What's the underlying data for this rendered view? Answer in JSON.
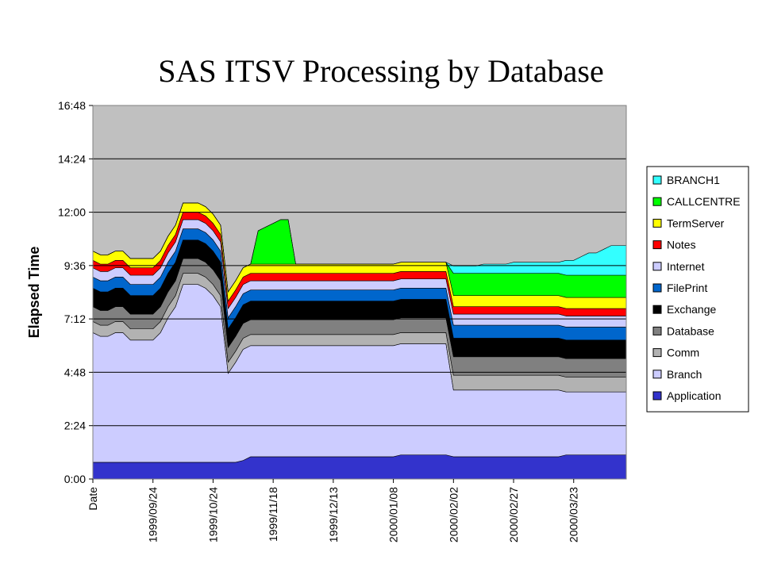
{
  "slide": {
    "title": "SAS ITSV Processing by Database"
  },
  "chart_data": {
    "type": "area",
    "stacked": true,
    "title": "SAS ITSV Processing by Database",
    "xlabel": "Date",
    "ylabel": "Elapsed Time",
    "y_unit": "hours:minutes",
    "ylim": [
      "0:00",
      "16:48"
    ],
    "y_ticks": [
      "0:00",
      "2:24",
      "4:48",
      "7:12",
      "9:36",
      "12:00",
      "14:24",
      "16:48"
    ],
    "x_ticks": [
      "Date",
      "1999/09/24",
      "1999/10/24",
      "1999/11/18",
      "1999/12/13",
      "2000/01/08",
      "2000/02/02",
      "2000/02/27",
      "2000/03/23"
    ],
    "x_tick_positions": [
      0,
      8,
      16,
      24,
      32,
      40,
      48,
      56,
      64
    ],
    "grid": true,
    "legend_position": "right",
    "plot_background": "#c0c0c0",
    "series": [
      {
        "name": "Application",
        "color": "#3333cc",
        "values": [
          "0:45",
          "0:45",
          "0:45",
          "0:45",
          "0:45",
          "0:45",
          "0:45",
          "0:45",
          "0:45",
          "0:45",
          "0:45",
          "0:45",
          "0:45",
          "0:45",
          "0:45",
          "0:45",
          "0:45",
          "0:45",
          "0:45",
          "0:45",
          "0:50",
          "1:00",
          "1:00",
          "1:00",
          "1:00",
          "1:00",
          "1:00",
          "1:00",
          "1:00",
          "1:00",
          "1:00",
          "1:00",
          "1:00",
          "1:00",
          "1:00",
          "1:00",
          "1:00",
          "1:00",
          "1:00",
          "1:00",
          "1:00",
          "1:05",
          "1:05",
          "1:05",
          "1:05",
          "1:05",
          "1:05",
          "1:05",
          "1:00",
          "1:00",
          "1:00",
          "1:00",
          "1:00",
          "1:00",
          "1:00",
          "1:00",
          "1:00",
          "1:00",
          "1:00",
          "1:00",
          "1:00",
          "1:00",
          "1:00",
          "1:05",
          "1:05",
          "1:05",
          "1:05",
          "1:05",
          "1:05",
          "1:05",
          "1:05",
          "1:05"
        ]
      },
      {
        "name": "Branch",
        "color": "#ccccff",
        "values": [
          "5:50",
          "5:40",
          "5:40",
          "5:50",
          "5:50",
          "5:30",
          "5:30",
          "5:30",
          "5:30",
          "5:50",
          "6:30",
          "7:00",
          "8:00",
          "8:00",
          "8:00",
          "7:50",
          "7:30",
          "7:00",
          "4:00",
          "4:30",
          "5:00",
          "5:00",
          "5:00",
          "5:00",
          "5:00",
          "5:00",
          "5:00",
          "5:00",
          "5:00",
          "5:00",
          "5:00",
          "5:00",
          "5:00",
          "5:00",
          "5:00",
          "5:00",
          "5:00",
          "5:00",
          "5:00",
          "5:00",
          "5:00",
          "5:00",
          "5:00",
          "5:00",
          "5:00",
          "5:00",
          "5:00",
          "5:00",
          "3:00",
          "3:00",
          "3:00",
          "3:00",
          "3:00",
          "3:00",
          "3:00",
          "3:00",
          "3:00",
          "3:00",
          "3:00",
          "3:00",
          "3:00",
          "3:00",
          "3:00",
          "2:50",
          "2:50",
          "2:50",
          "2:50",
          "2:50",
          "2:50",
          "2:50",
          "2:50",
          "2:50"
        ]
      },
      {
        "name": "Comm",
        "color": "#b2b2b2",
        "values": [
          "0:30",
          "0:30",
          "0:30",
          "0:30",
          "0:30",
          "0:30",
          "0:30",
          "0:30",
          "0:30",
          "0:30",
          "0:30",
          "0:30",
          "0:30",
          "0:30",
          "0:30",
          "0:30",
          "0:30",
          "0:30",
          "0:30",
          "0:30",
          "0:30",
          "0:30",
          "0:30",
          "0:30",
          "0:30",
          "0:30",
          "0:30",
          "0:30",
          "0:30",
          "0:30",
          "0:30",
          "0:30",
          "0:30",
          "0:30",
          "0:30",
          "0:30",
          "0:30",
          "0:30",
          "0:30",
          "0:30",
          "0:30",
          "0:30",
          "0:30",
          "0:30",
          "0:30",
          "0:30",
          "0:30",
          "0:30",
          "0:40",
          "0:40",
          "0:40",
          "0:40",
          "0:40",
          "0:40",
          "0:40",
          "0:40",
          "0:40",
          "0:40",
          "0:40",
          "0:40",
          "0:40",
          "0:40",
          "0:40",
          "0:40",
          "0:40",
          "0:40",
          "0:40",
          "0:40",
          "0:40",
          "0:40",
          "0:40",
          "0:40"
        ]
      },
      {
        "name": "Database",
        "color": "#808080",
        "values": [
          "0:40",
          "0:40",
          "0:40",
          "0:40",
          "0:40",
          "0:40",
          "0:40",
          "0:40",
          "0:40",
          "0:40",
          "0:40",
          "0:40",
          "0:40",
          "0:40",
          "0:40",
          "0:40",
          "0:40",
          "0:40",
          "0:40",
          "0:40",
          "0:40",
          "0:40",
          "0:40",
          "0:40",
          "0:40",
          "0:40",
          "0:40",
          "0:40",
          "0:40",
          "0:40",
          "0:40",
          "0:40",
          "0:40",
          "0:40",
          "0:40",
          "0:40",
          "0:40",
          "0:40",
          "0:40",
          "0:40",
          "0:40",
          "0:40",
          "0:40",
          "0:40",
          "0:40",
          "0:40",
          "0:40",
          "0:40",
          "0:50",
          "0:50",
          "0:50",
          "0:50",
          "0:50",
          "0:50",
          "0:50",
          "0:50",
          "0:50",
          "0:50",
          "0:50",
          "0:50",
          "0:50",
          "0:50",
          "0:50",
          "0:50",
          "0:50",
          "0:50",
          "0:50",
          "0:50",
          "0:50",
          "0:50",
          "0:50",
          "0:50"
        ]
      },
      {
        "name": "Exchange",
        "color": "#000000",
        "values": [
          "0:50",
          "0:50",
          "0:50",
          "0:50",
          "0:50",
          "0:50",
          "0:50",
          "0:50",
          "0:50",
          "0:50",
          "0:50",
          "0:50",
          "0:50",
          "0:50",
          "0:50",
          "0:50",
          "0:50",
          "0:50",
          "0:50",
          "0:50",
          "0:50",
          "0:50",
          "0:50",
          "0:50",
          "0:50",
          "0:50",
          "0:50",
          "0:50",
          "0:50",
          "0:50",
          "0:50",
          "0:50",
          "0:50",
          "0:50",
          "0:50",
          "0:50",
          "0:50",
          "0:50",
          "0:50",
          "0:50",
          "0:50",
          "0:50",
          "0:50",
          "0:50",
          "0:50",
          "0:50",
          "0:50",
          "0:50",
          "0:50",
          "0:50",
          "0:50",
          "0:50",
          "0:50",
          "0:50",
          "0:50",
          "0:50",
          "0:50",
          "0:50",
          "0:50",
          "0:50",
          "0:50",
          "0:50",
          "0:50",
          "0:50",
          "0:50",
          "0:50",
          "0:50",
          "0:50",
          "0:50",
          "0:50",
          "0:50",
          "0:50"
        ]
      },
      {
        "name": "FilePrint",
        "color": "#0066cc",
        "values": [
          "0:30",
          "0:30",
          "0:30",
          "0:30",
          "0:30",
          "0:30",
          "0:30",
          "0:30",
          "0:30",
          "0:30",
          "0:30",
          "0:30",
          "0:30",
          "0:30",
          "0:30",
          "0:30",
          "0:30",
          "0:30",
          "0:30",
          "0:30",
          "0:30",
          "0:30",
          "0:30",
          "0:30",
          "0:30",
          "0:30",
          "0:30",
          "0:30",
          "0:30",
          "0:30",
          "0:30",
          "0:30",
          "0:30",
          "0:30",
          "0:30",
          "0:30",
          "0:30",
          "0:30",
          "0:30",
          "0:30",
          "0:30",
          "0:30",
          "0:30",
          "0:30",
          "0:30",
          "0:30",
          "0:30",
          "0:30",
          "0:35",
          "0:35",
          "0:35",
          "0:35",
          "0:35",
          "0:35",
          "0:35",
          "0:35",
          "0:35",
          "0:35",
          "0:35",
          "0:35",
          "0:35",
          "0:35",
          "0:35",
          "0:35",
          "0:35",
          "0:35",
          "0:35",
          "0:35",
          "0:35",
          "0:35",
          "0:35",
          "0:35"
        ]
      },
      {
        "name": "Internet",
        "color": "#ccccff",
        "values": [
          "0:25",
          "0:25",
          "0:25",
          "0:25",
          "0:25",
          "0:25",
          "0:25",
          "0:25",
          "0:25",
          "0:25",
          "0:25",
          "0:25",
          "0:25",
          "0:25",
          "0:25",
          "0:25",
          "0:25",
          "0:25",
          "0:25",
          "0:25",
          "0:25",
          "0:25",
          "0:25",
          "0:25",
          "0:25",
          "0:25",
          "0:25",
          "0:25",
          "0:25",
          "0:25",
          "0:25",
          "0:25",
          "0:25",
          "0:25",
          "0:25",
          "0:25",
          "0:25",
          "0:25",
          "0:25",
          "0:25",
          "0:25",
          "0:25",
          "0:25",
          "0:25",
          "0:25",
          "0:25",
          "0:25",
          "0:25",
          "0:30",
          "0:30",
          "0:30",
          "0:30",
          "0:30",
          "0:30",
          "0:30",
          "0:30",
          "0:30",
          "0:30",
          "0:30",
          "0:30",
          "0:30",
          "0:30",
          "0:30",
          "0:30",
          "0:30",
          "0:30",
          "0:30",
          "0:30",
          "0:30",
          "0:30",
          "0:30",
          "0:30"
        ]
      },
      {
        "name": "Notes",
        "color": "#ff0000",
        "values": [
          "0:20",
          "0:20",
          "0:20",
          "0:20",
          "0:20",
          "0:20",
          "0:20",
          "0:20",
          "0:20",
          "0:20",
          "0:20",
          "0:20",
          "0:20",
          "0:20",
          "0:20",
          "0:20",
          "0:20",
          "0:20",
          "0:20",
          "0:20",
          "0:20",
          "0:20",
          "0:20",
          "0:20",
          "0:20",
          "0:20",
          "0:20",
          "0:20",
          "0:20",
          "0:20",
          "0:20",
          "0:20",
          "0:20",
          "0:20",
          "0:20",
          "0:20",
          "0:20",
          "0:20",
          "0:20",
          "0:20",
          "0:20",
          "0:20",
          "0:20",
          "0:20",
          "0:20",
          "0:20",
          "0:20",
          "0:20",
          "0:20",
          "0:20",
          "0:20",
          "0:20",
          "0:20",
          "0:20",
          "0:20",
          "0:20",
          "0:20",
          "0:20",
          "0:20",
          "0:20",
          "0:20",
          "0:20",
          "0:20",
          "0:20",
          "0:20",
          "0:20",
          "0:20",
          "0:20",
          "0:20",
          "0:20",
          "0:20",
          "0:20"
        ]
      },
      {
        "name": "TermServer",
        "color": "#ffff00",
        "values": [
          "0:25",
          "0:25",
          "0:25",
          "0:25",
          "0:25",
          "0:25",
          "0:25",
          "0:25",
          "0:25",
          "0:25",
          "0:25",
          "0:25",
          "0:25",
          "0:25",
          "0:25",
          "0:25",
          "0:25",
          "0:25",
          "0:25",
          "0:25",
          "0:25",
          "0:25",
          "0:25",
          "0:25",
          "0:25",
          "0:25",
          "0:25",
          "0:25",
          "0:25",
          "0:25",
          "0:25",
          "0:25",
          "0:25",
          "0:25",
          "0:25",
          "0:25",
          "0:25",
          "0:25",
          "0:25",
          "0:25",
          "0:25",
          "0:25",
          "0:25",
          "0:25",
          "0:25",
          "0:25",
          "0:25",
          "0:25",
          "0:30",
          "0:30",
          "0:30",
          "0:30",
          "0:30",
          "0:30",
          "0:30",
          "0:30",
          "0:30",
          "0:30",
          "0:30",
          "0:30",
          "0:30",
          "0:30",
          "0:30",
          "0:30",
          "0:30",
          "0:30",
          "0:30",
          "0:30",
          "0:30",
          "0:30",
          "0:30",
          "0:30"
        ]
      },
      {
        "name": "CALLCENTRE",
        "color": "#00ff00",
        "values": [
          "0:00",
          "0:00",
          "0:00",
          "0:00",
          "0:00",
          "0:00",
          "0:00",
          "0:00",
          "0:00",
          "0:00",
          "0:00",
          "0:00",
          "0:00",
          "0:00",
          "0:00",
          "0:00",
          "0:00",
          "0:00",
          "0:00",
          "0:00",
          "0:00",
          "0:00",
          "1:30",
          "1:40",
          "1:50",
          "2:00",
          "2:00",
          "0:00",
          "0:00",
          "0:00",
          "0:00",
          "0:00",
          "0:00",
          "0:00",
          "0:00",
          "0:00",
          "0:00",
          "0:00",
          "0:00",
          "0:00",
          "0:00",
          "0:00",
          "0:00",
          "0:00",
          "0:00",
          "0:00",
          "0:00",
          "0:00",
          "1:00",
          "1:00",
          "1:00",
          "1:00",
          "1:00",
          "1:00",
          "1:00",
          "1:00",
          "1:00",
          "1:00",
          "1:00",
          "1:00",
          "1:00",
          "1:00",
          "1:00",
          "1:00",
          "1:00",
          "1:00",
          "1:00",
          "1:00",
          "1:00",
          "1:00",
          "1:00",
          "1:00"
        ]
      },
      {
        "name": "BRANCH1",
        "color": "#33ffff",
        "values": [
          "0:00",
          "0:00",
          "0:00",
          "0:00",
          "0:00",
          "0:00",
          "0:00",
          "0:00",
          "0:00",
          "0:00",
          "0:00",
          "0:00",
          "0:00",
          "0:00",
          "0:00",
          "0:00",
          "0:00",
          "0:00",
          "0:00",
          "0:00",
          "0:00",
          "0:00",
          "0:00",
          "0:00",
          "0:00",
          "0:00",
          "0:00",
          "0:00",
          "0:00",
          "0:00",
          "0:00",
          "0:00",
          "0:00",
          "0:00",
          "0:00",
          "0:00",
          "0:00",
          "0:00",
          "0:00",
          "0:00",
          "0:00",
          "0:00",
          "0:00",
          "0:00",
          "0:00",
          "0:00",
          "0:00",
          "0:00",
          "0:20",
          "0:20",
          "0:20",
          "0:20",
          "0:25",
          "0:25",
          "0:25",
          "0:25",
          "0:30",
          "0:30",
          "0:30",
          "0:30",
          "0:30",
          "0:30",
          "0:30",
          "0:40",
          "0:40",
          "0:50",
          "1:00",
          "1:00",
          "1:10",
          "1:20",
          "1:20",
          "1:20"
        ]
      }
    ]
  }
}
